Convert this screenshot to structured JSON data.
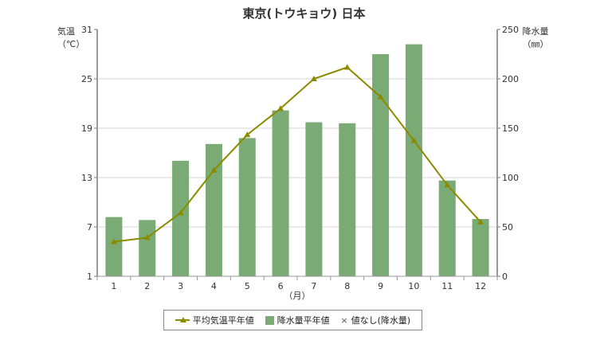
{
  "chart_data": {
    "type": "bar+line",
    "title": "東京(トウキョウ) 日本",
    "categories": [
      "1",
      "2",
      "3",
      "4",
      "5",
      "6",
      "7",
      "8",
      "9",
      "10",
      "11",
      "12"
    ],
    "xlabel": "（月）",
    "y_left": {
      "label_line1": "気温",
      "label_line2": "（℃）",
      "range": [
        1,
        31
      ],
      "ticks": [
        "1",
        "7",
        "13",
        "19",
        "25",
        "31"
      ]
    },
    "y_right": {
      "label_line1": "降水量",
      "label_line2": "（㎜）",
      "range": [
        0,
        250
      ],
      "ticks": [
        "0",
        "50",
        "100",
        "150",
        "200",
        "250"
      ]
    },
    "series": [
      {
        "name": "平均気温平年値",
        "type": "line",
        "axis": "left",
        "color": "#8b8b00",
        "values": [
          5.2,
          5.7,
          8.7,
          13.9,
          18.2,
          21.4,
          25.0,
          26.4,
          22.8,
          17.5,
          12.1,
          7.6
        ]
      },
      {
        "name": "降水量平年値",
        "type": "bar",
        "axis": "right",
        "color": "#7aab74",
        "values": [
          60,
          57,
          117,
          134,
          140,
          168,
          156,
          155,
          225,
          235,
          97,
          58
        ]
      }
    ],
    "legend_extra": {
      "symbol": "×",
      "label": "値なし(降水量)"
    },
    "grid": true,
    "legend_position": "bottom"
  }
}
